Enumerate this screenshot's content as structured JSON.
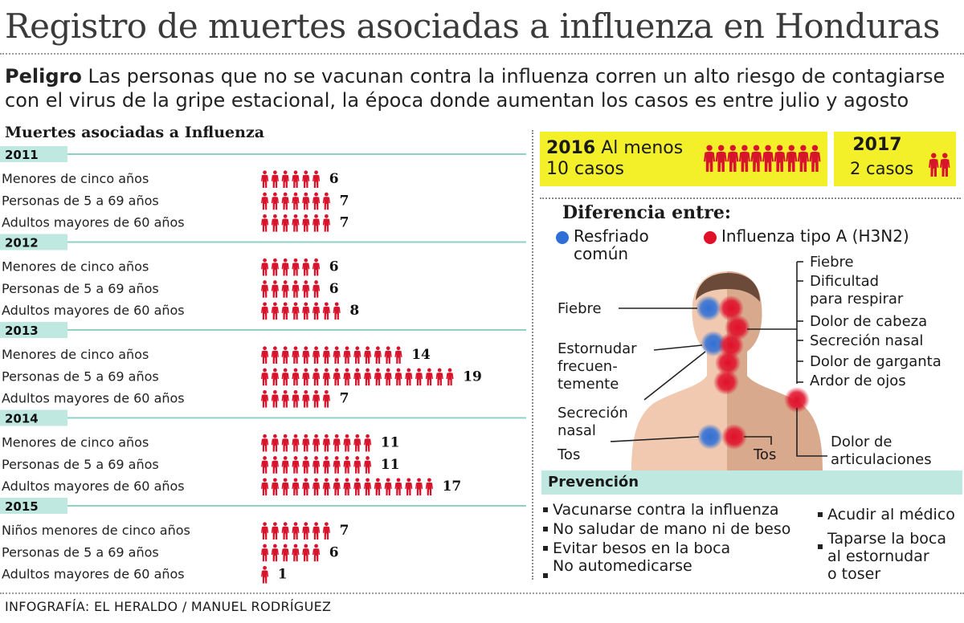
{
  "header": {
    "title": "Registro de muertes asociadas a influenza en Honduras",
    "lead_bold": "Peligro",
    "lead_text": "Las personas que no se vacunan contra la influenza corren un alto riesgo de contagiarse con el virus de la gripe estacional, la época donde aumentan los casos es entre julio y agosto"
  },
  "chart_data": {
    "type": "bar",
    "title": "Muertes asociadas a Influenza",
    "groups": [
      {
        "year": "2011",
        "rows": [
          {
            "label": "Menores de cinco años",
            "value": 6
          },
          {
            "label": "Personas de 5 a 69 años",
            "value": 7
          },
          {
            "label": "Adultos mayores de 60 años",
            "value": 7
          }
        ]
      },
      {
        "year": "2012",
        "rows": [
          {
            "label": "Menores de cinco años",
            "value": 6
          },
          {
            "label": "Personas de 5 a 69 años",
            "value": 6
          },
          {
            "label": "Adultos mayores de 60 años",
            "value": 8
          }
        ]
      },
      {
        "year": "2013",
        "rows": [
          {
            "label": "Menores de cinco años",
            "value": 14
          },
          {
            "label": "Personas de 5 a 69 años",
            "value": 19
          },
          {
            "label": "Adultos mayores de 60 años",
            "value": 7
          }
        ]
      },
      {
        "year": "2014",
        "rows": [
          {
            "label": "Menores de cinco años",
            "value": 11
          },
          {
            "label": "Personas de 5 a 69 años",
            "value": 11
          },
          {
            "label": "Adultos mayores de 60 años",
            "value": 17
          }
        ]
      },
      {
        "year": "2015",
        "rows": [
          {
            "label": "Niños menores de cinco años",
            "value": 7
          },
          {
            "label": "Personas de 5 a 69 años",
            "value": 6
          },
          {
            "label": "Adultos mayores de 60 años",
            "value": 1
          }
        ]
      }
    ]
  },
  "summary": {
    "y2016": {
      "year": "2016",
      "text_line1": "Al menos",
      "text_line2": "10 casos",
      "count": 10
    },
    "y2017": {
      "year": "2017",
      "text": "2 casos",
      "count": 2
    }
  },
  "diagram": {
    "title": "Diferencia entre:",
    "legend_cold": "Resfriado",
    "legend_cold_2": "común",
    "legend_flu": "Influenza tipo A (H3N2)",
    "cold_symptoms": [
      "Fiebre",
      "Estornudar",
      "frecuen-",
      "temente",
      "Secreción",
      "nasal",
      "Tos"
    ],
    "flu_symptoms": [
      "Fiebre",
      "Dificultad",
      "para respirar",
      "Dolor de cabeza",
      "Secreción nasal",
      "Dolor de garganta",
      "Ardor de ojos"
    ],
    "flu_cough": "Tos",
    "flu_joints_1": "Dolor de",
    "flu_joints_2": "articulaciones",
    "colors": {
      "cold": "#2f6fd6",
      "flu": "#e0102a",
      "figure": "#c47a5a",
      "highlight": "#f3f02a",
      "accent": "#bfe8e0"
    }
  },
  "prevention": {
    "title": "Prevención",
    "left": [
      "Vacunarse contra la influenza",
      "No saludar de mano ni de beso",
      "Evitar besos en la boca",
      "No automedicarse"
    ],
    "right_1": "Acudir al médico",
    "right_2a": "Taparse la boca",
    "right_2b": "al estornudar",
    "right_2c": "o toser"
  },
  "credit": "INFOGRAFÍA: EL HERALDO / MANUEL RODRÍGUEZ"
}
